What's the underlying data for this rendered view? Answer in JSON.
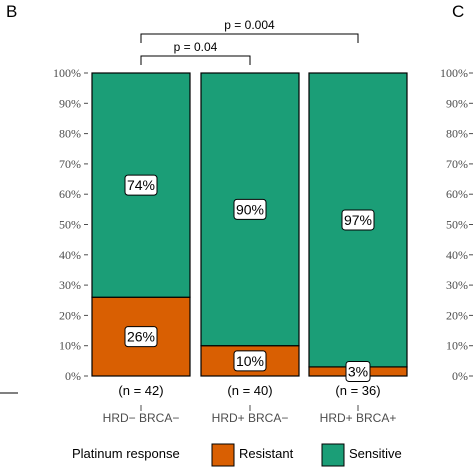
{
  "panel_labels": {
    "left": "B",
    "right": "C"
  },
  "colors": {
    "resistant": "#d95f02",
    "sensitive": "#1b9e77"
  },
  "chart_data": {
    "type": "bar",
    "stacked": true,
    "ylim": [
      0,
      100
    ],
    "y_ticks": [
      "0%",
      "10%",
      "20%",
      "30%",
      "40%",
      "50%",
      "60%",
      "70%",
      "80%",
      "90%",
      "100%"
    ],
    "bars": [
      {
        "group_label": "HRD− BRCA−",
        "n_label": "(n = 42)",
        "resistant": 26,
        "sensitive": 74,
        "resistant_label": "26%",
        "sensitive_label": "74%"
      },
      {
        "group_label": "HRD+ BRCA−",
        "n_label": "(n = 40)",
        "resistant": 10,
        "sensitive": 90,
        "resistant_label": "10%",
        "sensitive_label": "90%"
      },
      {
        "group_label": "HRD+ BRCA+",
        "n_label": "(n = 36)",
        "resistant": 3,
        "sensitive": 97,
        "resistant_label": "3%",
        "sensitive_label": "97%"
      }
    ],
    "significance": [
      {
        "from": 0,
        "to": 1,
        "label": "p = 0.04"
      },
      {
        "from": 0,
        "to": 2,
        "label": "p = 0.004"
      }
    ],
    "legend": {
      "title": "Platinum response",
      "items": [
        {
          "label": "Resistant",
          "color_key": "resistant"
        },
        {
          "label": "Sensitive",
          "color_key": "sensitive"
        }
      ]
    },
    "right_panel_y_ticks": [
      "0%",
      "10%",
      "20%",
      "30%",
      "40%",
      "50%",
      "60%",
      "70%",
      "80%",
      "90%",
      "100%"
    ]
  }
}
